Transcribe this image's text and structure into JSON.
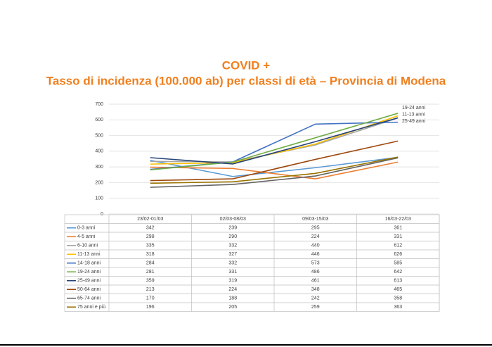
{
  "chart_data": {
    "type": "line",
    "title": "COVID +",
    "subtitle": "Tasso di incidenza (100.000 ab) per classi di età – Provincia di Modena",
    "categories": [
      "23/02-01/03",
      "02/03-08/03",
      "09/03-15/03",
      "16/03-22/03"
    ],
    "series": [
      {
        "name": "0-3 anni",
        "color": "#5b9bd5",
        "values": [
          342,
          239,
          295,
          361
        ]
      },
      {
        "name": "4-5 anni",
        "color": "#ed7d31",
        "values": [
          298,
          290,
          224,
          331
        ]
      },
      {
        "name": "6-10 anni",
        "color": "#a5a5a5",
        "values": [
          335,
          332,
          440,
          612
        ]
      },
      {
        "name": "11-13 anni",
        "color": "#ffc000",
        "values": [
          318,
          327,
          446,
          626
        ]
      },
      {
        "name": "14-18 anni",
        "color": "#4472c4",
        "values": [
          284,
          332,
          573,
          585
        ]
      },
      {
        "name": "19-24 anni",
        "color": "#70ad47",
        "values": [
          281,
          331,
          486,
          642
        ]
      },
      {
        "name": "25-49 anni",
        "color": "#264478",
        "values": [
          359,
          319,
          461,
          613
        ]
      },
      {
        "name": "50-64 anni",
        "color": "#9e480e",
        "values": [
          213,
          224,
          348,
          465
        ]
      },
      {
        "name": "65-74 anni",
        "color": "#636363",
        "values": [
          170,
          188,
          242,
          358
        ]
      },
      {
        "name": "75 anni e più",
        "color": "#997300",
        "values": [
          196,
          205,
          259,
          363
        ]
      }
    ],
    "annotations": [
      "19-24 anni",
      "11-13 anni",
      "25-49 anni"
    ],
    "ylim": [
      0,
      700
    ],
    "yticks": [
      0,
      100,
      200,
      300,
      400,
      500,
      600,
      700
    ],
    "grid": true
  }
}
